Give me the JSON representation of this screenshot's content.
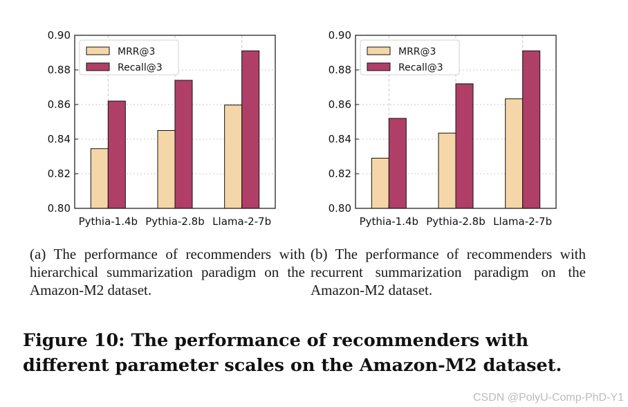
{
  "chart_data": [
    {
      "type": "bar",
      "categories": [
        "Pythia-1.4b",
        "Pythia-2.8b",
        "Llama-2-7b"
      ],
      "series": [
        {
          "name": "MRR@3",
          "color": "#f5d6a8",
          "values": [
            0.8345,
            0.845,
            0.8597
          ]
        },
        {
          "name": "Recall@3",
          "color": "#b03f67",
          "values": [
            0.862,
            0.874,
            0.891
          ]
        }
      ],
      "ylim": [
        0.8,
        0.9
      ],
      "yticks": [
        "0.80",
        "0.82",
        "0.84",
        "0.86",
        "0.88",
        "0.90"
      ],
      "grid": true,
      "legend": "top-left",
      "caption": "(a)  The performance of recommenders with hierarchical summarization paradigm on the Amazon-M2 dataset."
    },
    {
      "type": "bar",
      "categories": [
        "Pythia-1.4b",
        "Pythia-2.8b",
        "Llama-2-7b"
      ],
      "series": [
        {
          "name": "MRR@3",
          "color": "#f5d6a8",
          "values": [
            0.829,
            0.8435,
            0.8633
          ]
        },
        {
          "name": "Recall@3",
          "color": "#b03f67",
          "values": [
            0.852,
            0.872,
            0.891
          ]
        }
      ],
      "ylim": [
        0.8,
        0.9
      ],
      "yticks": [
        "0.80",
        "0.82",
        "0.84",
        "0.86",
        "0.88",
        "0.90"
      ],
      "grid": true,
      "legend": "top-left",
      "caption": "(b)  The performance of recommenders with recurrent summarization paradigm on the Amazon-M2 dataset."
    }
  ],
  "figure_caption": "Figure 10: The performance of recommenders with different parameter scales on the Amazon-M2 dataset.",
  "watermark": "CSDN @PolyU-Comp-PhD-Y1"
}
